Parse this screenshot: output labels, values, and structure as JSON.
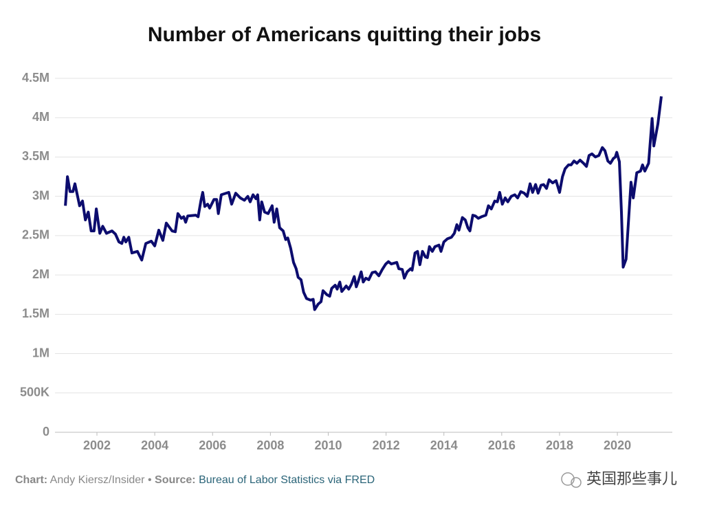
{
  "chart_data": {
    "type": "line",
    "title": "Number of Americans quitting their jobs",
    "x": [
      2000.91,
      2000.98,
      2001.07,
      2001.17,
      2001.24,
      2001.4,
      2001.5,
      2001.6,
      2001.7,
      2001.8,
      2001.9,
      2001.98,
      2002.1,
      2002.2,
      2002.33,
      2002.52,
      2002.64,
      2002.76,
      2002.86,
      2002.93,
      2003.0,
      2003.1,
      2003.21,
      2003.4,
      2003.55,
      2003.69,
      2003.88,
      2004.0,
      2004.14,
      2004.28,
      2004.4,
      2004.6,
      2004.71,
      2004.8,
      2004.92,
      2005.0,
      2005.07,
      2005.14,
      2005.42,
      2005.5,
      2005.6,
      2005.66,
      2005.73,
      2005.83,
      2005.9,
      2006.05,
      2006.14,
      2006.2,
      2006.3,
      2006.56,
      2006.66,
      2006.8,
      2006.96,
      2007.1,
      2007.22,
      2007.3,
      2007.4,
      2007.5,
      2007.56,
      2007.63,
      2007.7,
      2007.8,
      2007.92,
      2008.06,
      2008.13,
      2008.22,
      2008.32,
      2008.44,
      2008.53,
      2008.6,
      2008.7,
      2008.8,
      2008.89,
      2008.96,
      2009.06,
      2009.15,
      2009.25,
      2009.39,
      2009.48,
      2009.53,
      2009.65,
      2009.75,
      2009.82,
      2009.95,
      2010.05,
      2010.12,
      2010.24,
      2010.31,
      2010.4,
      2010.47,
      2010.62,
      2010.71,
      2010.8,
      2010.9,
      2010.97,
      2011.04,
      2011.14,
      2011.21,
      2011.3,
      2011.4,
      2011.52,
      2011.63,
      2011.75,
      2011.87,
      2011.99,
      2012.08,
      2012.18,
      2012.37,
      2012.44,
      2012.56,
      2012.63,
      2012.73,
      2012.85,
      2012.9,
      2013.0,
      2013.09,
      2013.17,
      2013.26,
      2013.36,
      2013.43,
      2013.5,
      2013.6,
      2013.69,
      2013.83,
      2013.9,
      2014.0,
      2014.12,
      2014.26,
      2014.36,
      2014.45,
      2014.52,
      2014.64,
      2014.74,
      2014.83,
      2014.9,
      2015.0,
      2015.09,
      2015.19,
      2015.3,
      2015.45,
      2015.54,
      2015.64,
      2015.76,
      2015.85,
      2015.93,
      2016.02,
      2016.12,
      2016.21,
      2016.33,
      2016.45,
      2016.55,
      2016.66,
      2016.78,
      2016.88,
      2016.98,
      2017.07,
      2017.17,
      2017.26,
      2017.36,
      2017.45,
      2017.55,
      2017.64,
      2017.76,
      2017.88,
      2018.0,
      2018.1,
      2018.19,
      2018.31,
      2018.4,
      2018.5,
      2018.6,
      2018.71,
      2018.83,
      2018.93,
      2019.02,
      2019.12,
      2019.24,
      2019.36,
      2019.48,
      2019.57,
      2019.67,
      2019.76,
      2019.86,
      2019.93,
      2019.98,
      2020.07,
      2020.14,
      2020.2,
      2020.3,
      2020.47,
      2020.55,
      2020.67,
      2020.8,
      2020.87,
      2020.95,
      2021.08,
      2021.2,
      2021.26,
      2021.4,
      2021.52
    ],
    "series": [
      {
        "color": "#0c0c6e",
        "values": [
          2880000,
          3250000,
          3060000,
          3060000,
          3160000,
          2880000,
          2940000,
          2700000,
          2800000,
          2560000,
          2560000,
          2840000,
          2530000,
          2620000,
          2530000,
          2560000,
          2520000,
          2420000,
          2400000,
          2480000,
          2420000,
          2480000,
          2280000,
          2300000,
          2190000,
          2400000,
          2430000,
          2370000,
          2570000,
          2440000,
          2660000,
          2560000,
          2550000,
          2780000,
          2720000,
          2740000,
          2670000,
          2750000,
          2760000,
          2740000,
          2950000,
          3050000,
          2870000,
          2900000,
          2850000,
          2960000,
          2960000,
          2780000,
          3020000,
          3050000,
          2900000,
          3040000,
          2980000,
          2950000,
          3000000,
          2930000,
          3020000,
          2970000,
          3020000,
          2700000,
          2930000,
          2800000,
          2780000,
          2880000,
          2670000,
          2840000,
          2600000,
          2560000,
          2450000,
          2470000,
          2340000,
          2160000,
          2080000,
          1970000,
          1940000,
          1780000,
          1700000,
          1680000,
          1690000,
          1560000,
          1630000,
          1660000,
          1800000,
          1750000,
          1730000,
          1830000,
          1870000,
          1820000,
          1910000,
          1790000,
          1860000,
          1820000,
          1880000,
          1980000,
          1850000,
          1920000,
          2040000,
          1910000,
          1960000,
          1940000,
          2030000,
          2040000,
          1990000,
          2070000,
          2140000,
          2170000,
          2140000,
          2160000,
          2080000,
          2070000,
          1960000,
          2040000,
          2080000,
          2060000,
          2280000,
          2300000,
          2130000,
          2300000,
          2230000,
          2220000,
          2360000,
          2300000,
          2360000,
          2380000,
          2300000,
          2420000,
          2460000,
          2480000,
          2530000,
          2640000,
          2570000,
          2730000,
          2700000,
          2600000,
          2560000,
          2760000,
          2750000,
          2720000,
          2740000,
          2760000,
          2880000,
          2840000,
          2940000,
          2930000,
          3050000,
          2900000,
          2980000,
          2930000,
          3000000,
          3020000,
          2980000,
          3060000,
          3040000,
          3000000,
          3160000,
          3050000,
          3150000,
          3040000,
          3140000,
          3150000,
          3100000,
          3210000,
          3170000,
          3200000,
          3050000,
          3250000,
          3350000,
          3400000,
          3400000,
          3450000,
          3420000,
          3460000,
          3420000,
          3380000,
          3520000,
          3540000,
          3500000,
          3520000,
          3620000,
          3580000,
          3450000,
          3420000,
          3480000,
          3500000,
          3560000,
          3440000,
          2800000,
          2100000,
          2200000,
          3180000,
          2980000,
          3300000,
          3320000,
          3400000,
          3320000,
          3420000,
          3990000,
          3640000,
          3920000,
          4270000
        ]
      }
    ],
    "xlim": [
      2000.55,
      2021.9
    ],
    "xticks": [
      2002,
      2004,
      2006,
      2008,
      2010,
      2012,
      2014,
      2016,
      2018,
      2020
    ],
    "ylim": [
      0,
      4500000
    ],
    "yticks": [
      0,
      {
        "value": 500000,
        "label": "500K"
      },
      {
        "value": 1000000,
        "label": "1M"
      },
      {
        "value": 1500000,
        "label": "1.5M"
      },
      {
        "value": 2000000,
        "label": "2M"
      },
      {
        "value": 2500000,
        "label": "2.5M"
      },
      {
        "value": 3000000,
        "label": "3M"
      },
      {
        "value": 3500000,
        "label": "3.5M"
      },
      {
        "value": 4000000,
        "label": "4M"
      },
      {
        "value": 4500000,
        "label": "4.5M"
      }
    ],
    "grid": true,
    "footer": {
      "chart_label": "Chart:",
      "chart_author": "Andy Kiersz/Insider",
      "separator": "•",
      "source_label": "Source:",
      "source": "Bureau of Labor Statistics via FRED"
    },
    "watermark": "英国那些事儿"
  }
}
